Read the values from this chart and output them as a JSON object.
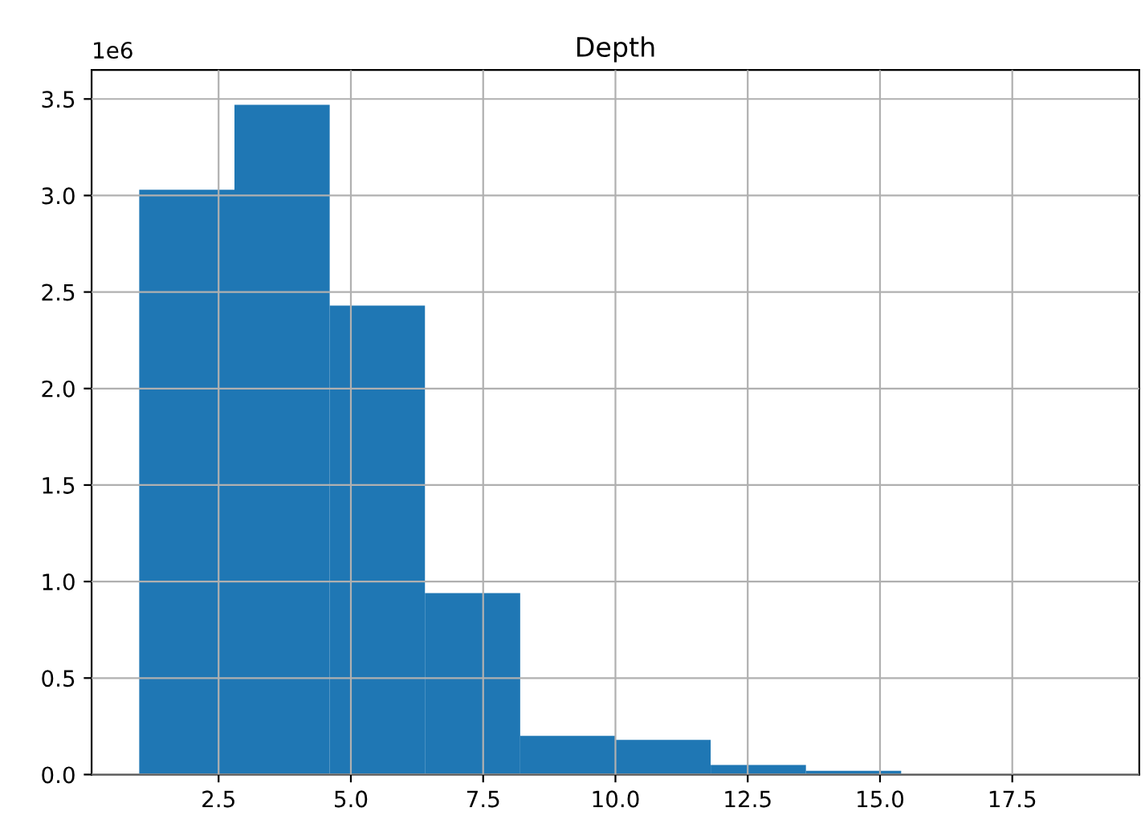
{
  "chart_data": {
    "type": "histogram",
    "title": "Depth",
    "bins": [
      1.0,
      2.8,
      4.6,
      6.4,
      8.2,
      10.0,
      11.8,
      13.6,
      15.4,
      17.2,
      19.0
    ],
    "values": [
      3.03,
      3.47,
      2.43,
      0.94,
      0.2,
      0.18,
      0.05,
      0.02,
      0,
      0
    ],
    "color": "#1f77b4",
    "xlim": [
      0.1,
      19.9
    ],
    "xticks": [
      2.5,
      {
        "value": 5,
        "label": "5.0"
      },
      7.5,
      {
        "value": 10,
        "label": "10.0"
      },
      12.5,
      {
        "value": 15,
        "label": "15.0"
      },
      17.5
    ],
    "ylim": [
      0,
      3.65
    ],
    "yticks": [
      {
        "value": 0,
        "label": "0.0"
      },
      0.5,
      {
        "value": 1,
        "label": "1.0"
      },
      1.5,
      {
        "value": 2,
        "label": "2.0"
      },
      2.5,
      {
        "value": 3,
        "label": "3.0"
      },
      3.5
    ],
    "annotations": [
      "1e6"
    ],
    "grid": true
  }
}
